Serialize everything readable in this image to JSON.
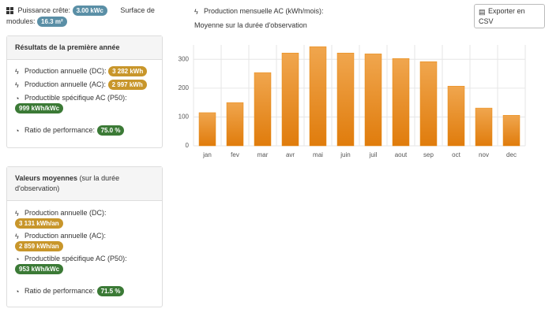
{
  "header": {
    "power_label": "Puissance crête:",
    "power_badge": "3.00 kWc",
    "surface_label": "Surface de modules:",
    "surface_badge": "16.3 m²"
  },
  "panels": [
    {
      "title": "Résultats de la première année",
      "items": [
        {
          "label": "Production annuelle (DC):",
          "badge": "3 282 kWh"
        },
        {
          "label": "Production annuelle (AC):",
          "badge": "2 997 kWh"
        },
        {
          "label": "Productible spécifique AC (P50):",
          "badge": "999 kWh/kWc"
        },
        {
          "label": "Ratio de performance:",
          "badge": "75.0 %"
        }
      ]
    },
    {
      "title": "Valeurs moyennes",
      "title_note": "(sur la durée d'observation)",
      "items": [
        {
          "label": "Production annuelle (DC):",
          "badge": "3 131 kWh/an"
        },
        {
          "label": "Production annuelle (AC):",
          "badge": "2 859 kWh/an"
        },
        {
          "label": "Productible spécifique AC (P50):",
          "badge": "953 kWh/kWc"
        },
        {
          "label": "Ratio de performance:",
          "badge": "71.5 %"
        }
      ]
    }
  ],
  "export_button": "Exporter en CSV",
  "chart_data": {
    "type": "bar",
    "title": "Production mensuelle AC (kWh/mois):",
    "subtitle": "Moyenne sur la durée d'observation",
    "categories": [
      "jan",
      "fev",
      "mar",
      "avr",
      "mai",
      "juin",
      "juil",
      "aout",
      "sep",
      "oct",
      "nov",
      "dec"
    ],
    "values": [
      115,
      150,
      254,
      322,
      344,
      322,
      319,
      303,
      292,
      207,
      131,
      106
    ],
    "color": "#e8870f",
    "ylim": [
      0,
      350
    ],
    "yticks": [
      0,
      100,
      200,
      300
    ],
    "grid": true
  }
}
